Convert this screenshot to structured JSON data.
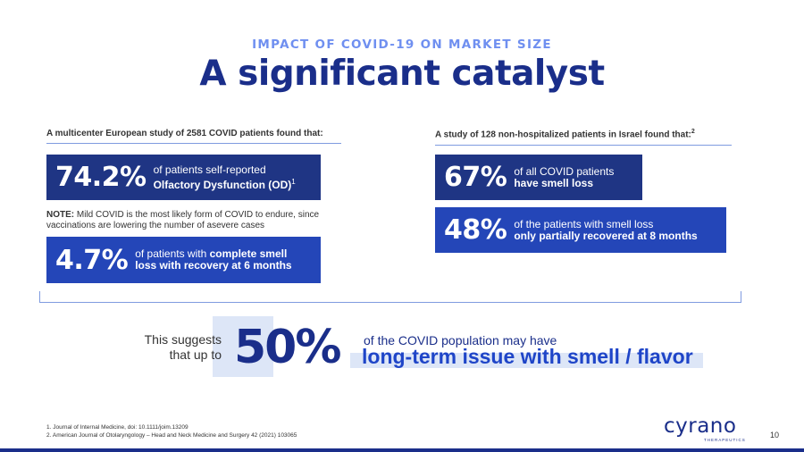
{
  "header": {
    "kicker": "IMPACT OF COVID-19 ON MARKET SIZE",
    "title": "A significant catalyst"
  },
  "left_study": {
    "intro": "A multicenter European study of 2581 COVID patients found that:",
    "stat1": {
      "value": "74.2%",
      "line1": "of patients self-reported",
      "line2": "Olfactory Dysfunction (OD)",
      "sup": "1"
    },
    "note": {
      "label": "NOTE:",
      "text": "Mild COVID is the most likely form of COVID to endure, since vaccinations are lowering the number of asevere cases"
    },
    "stat2": {
      "value": "4.7%",
      "line1_plain": "of patients with",
      "line1_bold": "complete smell",
      "line2": "loss with recovery at 6 months"
    }
  },
  "right_study": {
    "intro": "A study of 128 non-hospitalized patients in Israel found that:",
    "intro_sup": "2",
    "stat1": {
      "value": "67%",
      "line1": "of all COVID patients",
      "line2": "have smell loss"
    },
    "stat2": {
      "value": "48%",
      "line1": "of the patients with smell loss",
      "line2": "only partially recovered at 8 months"
    }
  },
  "conclusion": {
    "lead1": "This suggests",
    "lead2": "that up to",
    "value": "50%",
    "line1": "of the COVID population may have",
    "line2": "long-term issue with smell / flavor"
  },
  "footnotes": [
    "1. Journal of Internal Medicine, doi: 10.1111/joim.13209",
    "2. American Journal of Otolaryngology – Head and Neck Medicine and Surgery 42 (2021) 103065"
  ],
  "logo": {
    "name": "cyrano",
    "subtitle": "THERAPEUTICS"
  },
  "page_number": "10",
  "colors": {
    "navy": "#1a2e8a",
    "box_navy": "#1f3584",
    "box_blue": "#2446b8",
    "accent_light": "#6f8ff0",
    "highlight": "#dde6f7"
  }
}
